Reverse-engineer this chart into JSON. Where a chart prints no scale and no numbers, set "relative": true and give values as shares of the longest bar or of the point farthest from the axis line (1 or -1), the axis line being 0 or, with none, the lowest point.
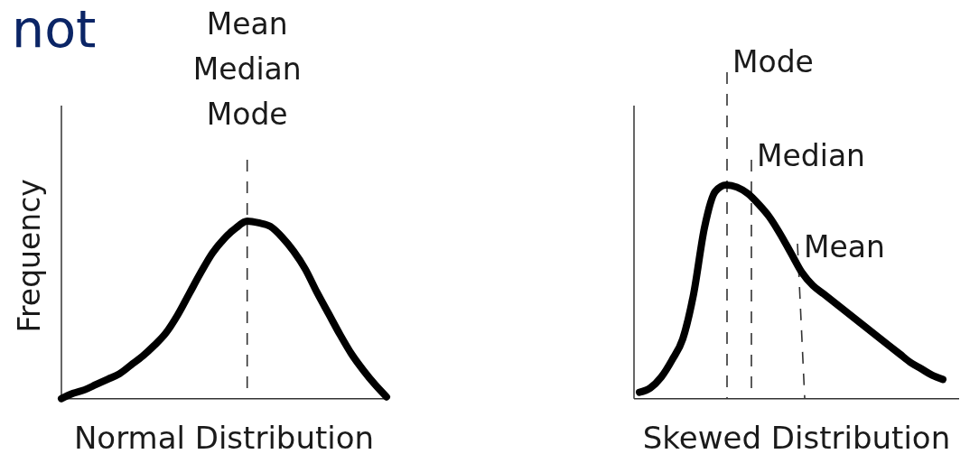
{
  "chart_data": [
    {
      "type": "line",
      "relative": true,
      "xlabel": "Normal Distribution",
      "ylabel": "Frequency",
      "annotations": [
        "not",
        "Mean Median Mode"
      ],
      "categories": [
        null,
        null,
        null,
        null,
        null,
        null,
        null,
        null,
        null,
        null,
        null,
        null,
        null,
        null,
        null,
        null,
        null,
        null,
        null,
        null,
        null,
        null,
        null,
        null,
        null,
        null,
        null,
        null,
        null
      ],
      "series": [
        {
          "color": "#000000",
          "values": [
            0,
            0.03,
            0.05,
            0.08,
            0.11,
            0.14,
            0.19,
            0.24,
            0.3,
            0.37,
            0.47,
            0.59,
            0.71,
            0.82,
            0.9,
            0.96,
            1,
            0.99,
            0.97,
            0.91,
            0.83,
            0.73,
            0.6,
            0.48,
            0.36,
            0.25,
            0.16,
            0.08,
            0.01
          ]
        }
      ]
    },
    {
      "type": "line",
      "relative": true,
      "xlabel": "Skewed Distribution",
      "annotations": [
        "Mode",
        "Median",
        "Mean"
      ],
      "categories": [
        null,
        null,
        null,
        null,
        null,
        null,
        null,
        null,
        null,
        null,
        null,
        null,
        null,
        null,
        null,
        null,
        null,
        null,
        null,
        null,
        null,
        null,
        null,
        null,
        null,
        null,
        null,
        null,
        null
      ],
      "series": [
        {
          "color": "#000000",
          "values": [
            0.03,
            0.05,
            0.1,
            0.18,
            0.28,
            0.49,
            0.8,
            0.97,
            1,
            0.99,
            0.96,
            0.91,
            0.85,
            0.77,
            0.68,
            0.59,
            0.53,
            0.49,
            0.45,
            0.41,
            0.37,
            0.33,
            0.29,
            0.25,
            0.21,
            0.17,
            0.14,
            0.11,
            0.09
          ]
        }
      ]
    }
  ]
}
